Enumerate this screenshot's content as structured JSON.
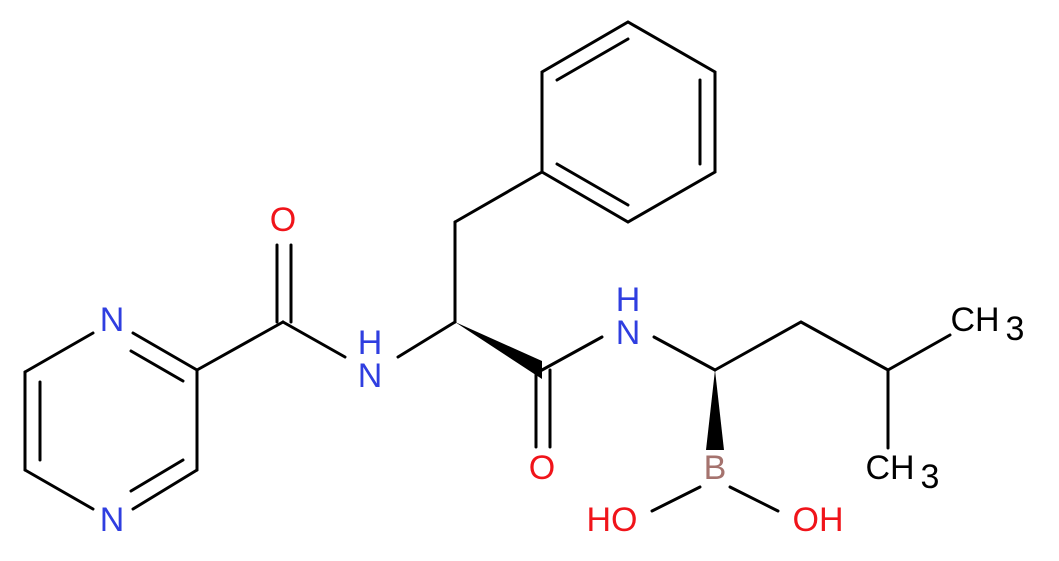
{
  "atoms": [
    {
      "label": "N"
    },
    {
      "label": "N"
    },
    {
      "label": "O"
    },
    {
      "label": "N",
      "h": "H"
    },
    {
      "label": "N",
      "h": "H"
    },
    {
      "label": "O"
    },
    {
      "label": "B"
    },
    {
      "label": "HO"
    },
    {
      "label": "OH"
    },
    {
      "label": "CH",
      "sub": "3"
    },
    {
      "label": "CH",
      "sub": "3"
    }
  ]
}
